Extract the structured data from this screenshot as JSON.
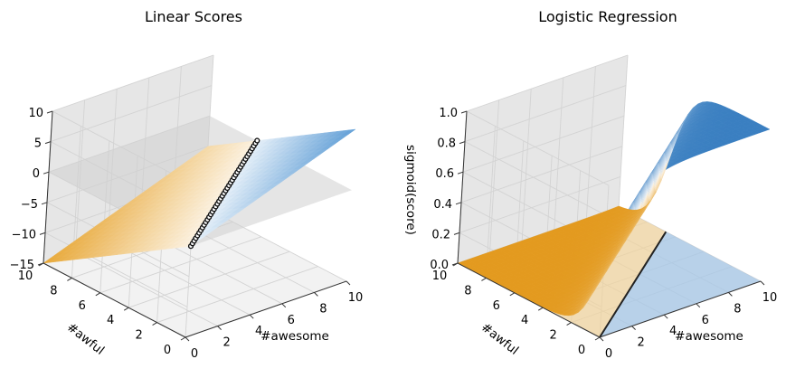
{
  "chart_data": [
    {
      "type": "surface",
      "title": "Linear Scores",
      "xlabel": "#awesome",
      "ylabel": "#awful",
      "zlabel": "",
      "xlim": [
        0,
        10
      ],
      "ylim": [
        0,
        10
      ],
      "zlim": [
        -15,
        10
      ],
      "xticks": [
        "0",
        "2",
        "4",
        "6",
        "8",
        "10"
      ],
      "yticks": [
        "0",
        "2",
        "4",
        "6",
        "8",
        "10"
      ],
      "zticks": [
        "10",
        "5",
        "0",
        "−5",
        "−10",
        "−15"
      ],
      "surface": "score = #awesome − 1.5 × #awful",
      "plane_z": 0,
      "corner_values": [
        {
          "awesome": 0,
          "awful": 0,
          "score": 0
        },
        {
          "awesome": 10,
          "awful": 0,
          "score": 10
        },
        {
          "awesome": 0,
          "awful": 10,
          "score": -15
        },
        {
          "awesome": 10,
          "awful": 10,
          "score": -5
        }
      ],
      "decision_boundary": [
        [
          0,
          0
        ],
        [
          10,
          6.67
        ]
      ],
      "colors": {
        "positive": "#5b9bd5",
        "negative": "#e8a838",
        "plane": "#cfcfcf",
        "boundary": "#111111"
      },
      "grid": true
    },
    {
      "type": "surface",
      "title": "Logistic Regression",
      "xlabel": "#awesome",
      "ylabel": "#awful",
      "zlabel": "sigmoid(score)",
      "xlim": [
        0,
        10
      ],
      "ylim": [
        0,
        10
      ],
      "zlim": [
        0,
        1
      ],
      "xticks": [
        "0",
        "2",
        "4",
        "6",
        "8",
        "10"
      ],
      "yticks": [
        "0",
        "2",
        "4",
        "6",
        "8",
        "10"
      ],
      "zticks": [
        "1.0",
        "0.8",
        "0.6",
        "0.4",
        "0.2",
        "0.0"
      ],
      "surface": "sigmoid(#awesome − 1.5 × #awful)",
      "decision_boundary": [
        [
          0,
          0
        ],
        [
          10,
          6.67
        ]
      ],
      "colors": {
        "positive": "#3a7fc1",
        "negative": "#e39a1f",
        "boundary": "#222222"
      },
      "grid": true
    }
  ]
}
